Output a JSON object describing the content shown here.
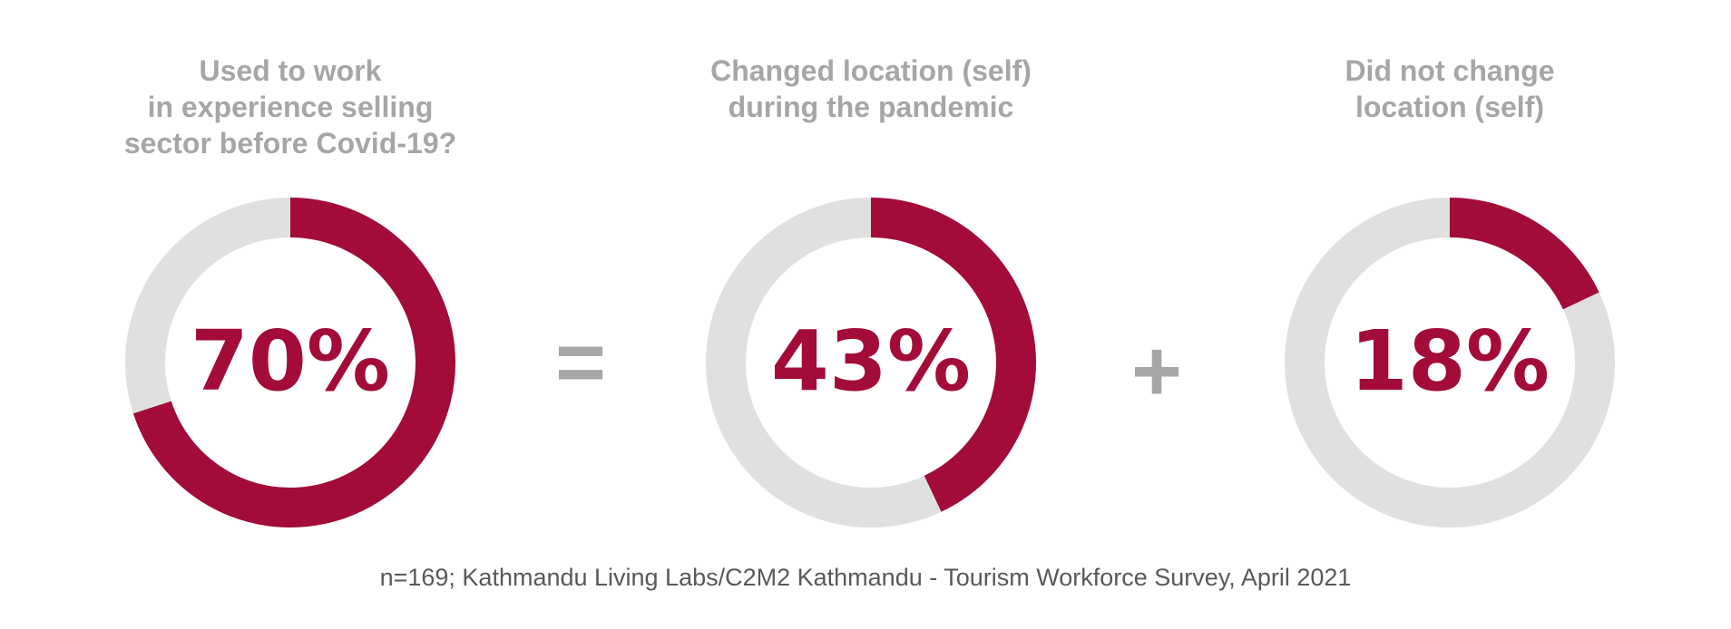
{
  "colors": {
    "accent": "#a30c38",
    "track": "#e0e0e0",
    "label": "#a6a6a6",
    "source": "#595959"
  },
  "chart_data": [
    {
      "type": "pie",
      "subtype": "donut",
      "title": "Used to work\nin experience selling\nsector before Covid-19?",
      "value": 70,
      "label": "70%"
    },
    {
      "type": "pie",
      "subtype": "donut",
      "title": "Changed location (self)\nduring the pandemic",
      "value": 43,
      "label": "43%"
    },
    {
      "type": "pie",
      "subtype": "donut",
      "title": "Did not change\nlocation (self)",
      "value": 18,
      "label": "18%"
    }
  ],
  "operators": {
    "equals": "=",
    "plus": "+"
  },
  "source": "n=169; Kathmandu Living Labs/C2M2 Kathmandu - Tourism Workforce Survey, April 2021"
}
